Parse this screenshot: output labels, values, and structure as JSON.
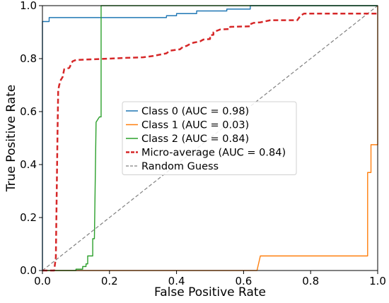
{
  "chart_data": {
    "type": "line",
    "title": "",
    "xlabel": "False Positive Rate",
    "ylabel": "True Positive Rate",
    "xlim": [
      0.0,
      1.0
    ],
    "ylim": [
      0.0,
      1.0
    ],
    "xticks": [
      "0.0",
      "0.2",
      "0.4",
      "0.6",
      "0.8",
      "1.0"
    ],
    "yticks": [
      "0.0",
      "0.2",
      "0.4",
      "0.6",
      "0.8",
      "1.0"
    ],
    "grid": false,
    "legend_position": "center",
    "series": [
      {
        "name": "Class 0 (AUC = 0.98)",
        "color": "#1f77b4",
        "style": "solid",
        "points": [
          [
            0,
            0
          ],
          [
            0,
            0.94
          ],
          [
            0.02,
            0.94
          ],
          [
            0.02,
            0.955
          ],
          [
            0.37,
            0.955
          ],
          [
            0.37,
            0.962
          ],
          [
            0.4,
            0.962
          ],
          [
            0.4,
            0.97
          ],
          [
            0.46,
            0.97
          ],
          [
            0.46,
            0.98
          ],
          [
            0.55,
            0.98
          ],
          [
            0.55,
            0.987
          ],
          [
            0.62,
            0.987
          ],
          [
            0.62,
            1.0
          ],
          [
            1.0,
            1.0
          ]
        ]
      },
      {
        "name": "Class 1 (AUC = 0.03)",
        "color": "#ff7f0e",
        "style": "solid",
        "points": [
          [
            0,
            0
          ],
          [
            0.64,
            0
          ],
          [
            0.65,
            0.055
          ],
          [
            0.97,
            0.055
          ],
          [
            0.97,
            0.37
          ],
          [
            0.98,
            0.37
          ],
          [
            0.98,
            0.475
          ],
          [
            1.0,
            0.475
          ],
          [
            1.0,
            1.0
          ]
        ]
      },
      {
        "name": "Class 2 (AUC = 0.84)",
        "color": "#2ca02c",
        "style": "solid",
        "points": [
          [
            0,
            0
          ],
          [
            0.1,
            0
          ],
          [
            0.1,
            0.005
          ],
          [
            0.12,
            0.005
          ],
          [
            0.12,
            0.015
          ],
          [
            0.13,
            0.015
          ],
          [
            0.13,
            0.025
          ],
          [
            0.135,
            0.025
          ],
          [
            0.135,
            0.055
          ],
          [
            0.15,
            0.055
          ],
          [
            0.15,
            0.12
          ],
          [
            0.155,
            0.12
          ],
          [
            0.16,
            0.56
          ],
          [
            0.17,
            0.58
          ],
          [
            0.175,
            0.58
          ],
          [
            0.175,
            1.0
          ],
          [
            1.0,
            1.0
          ]
        ]
      },
      {
        "name": "Micro-average (AUC = 0.84)",
        "color": "#d62728",
        "style": "dashed",
        "points": [
          [
            0,
            0
          ],
          [
            0.035,
            0
          ],
          [
            0.04,
            0.05
          ],
          [
            0.045,
            0.52
          ],
          [
            0.047,
            0.68
          ],
          [
            0.05,
            0.7
          ],
          [
            0.055,
            0.72
          ],
          [
            0.06,
            0.73
          ],
          [
            0.065,
            0.76
          ],
          [
            0.08,
            0.765
          ],
          [
            0.09,
            0.79
          ],
          [
            0.1,
            0.795
          ],
          [
            0.2,
            0.8
          ],
          [
            0.25,
            0.803
          ],
          [
            0.3,
            0.805
          ],
          [
            0.33,
            0.81
          ],
          [
            0.37,
            0.82
          ],
          [
            0.38,
            0.83
          ],
          [
            0.41,
            0.835
          ],
          [
            0.42,
            0.845
          ],
          [
            0.43,
            0.848
          ],
          [
            0.44,
            0.855
          ],
          [
            0.45,
            0.86
          ],
          [
            0.47,
            0.865
          ],
          [
            0.48,
            0.872
          ],
          [
            0.5,
            0.874
          ],
          [
            0.5,
            0.888
          ],
          [
            0.51,
            0.89
          ],
          [
            0.51,
            0.9
          ],
          [
            0.53,
            0.91
          ],
          [
            0.56,
            0.912
          ],
          [
            0.56,
            0.92
          ],
          [
            0.62,
            0.922
          ],
          [
            0.62,
            0.93
          ],
          [
            0.63,
            0.935
          ],
          [
            0.65,
            0.937
          ],
          [
            0.68,
            0.945
          ],
          [
            0.76,
            0.945
          ],
          [
            0.77,
            0.962
          ],
          [
            0.78,
            0.97
          ],
          [
            1.0,
            0.97
          ]
        ]
      },
      {
        "name": "Random Guess",
        "color": "#808080",
        "style": "dashed-thin",
        "points": [
          [
            0,
            0
          ],
          [
            1.0,
            1.0
          ]
        ]
      }
    ]
  }
}
